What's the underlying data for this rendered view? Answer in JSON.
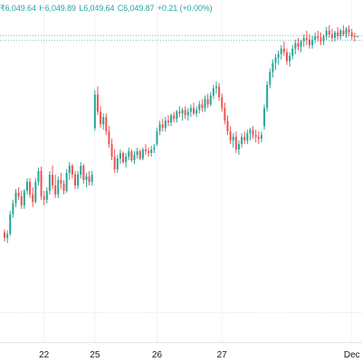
{
  "legend": {
    "open": "₹6,049.64",
    "high": "H6,049.89",
    "low": "L6,049.64",
    "close": "C6,049.87",
    "change": "+0.21 (+0.00%)",
    "color_up": "#26a69a",
    "color_down": "#ef5350"
  },
  "chart_data": {
    "type": "candlestick",
    "title": "",
    "xlabel": "",
    "ylabel": "",
    "x_ticks": [
      {
        "label": "22",
        "index": 14
      },
      {
        "label": "25",
        "index": 32
      },
      {
        "label": "26",
        "index": 54
      },
      {
        "label": "27",
        "index": 77
      },
      {
        "label": "Dec",
        "index": 123
      }
    ],
    "current_price": 6049.87,
    "grid": "vertical",
    "ylim": [
      5720,
      6070
    ],
    "colors": {
      "up": "#26a69a",
      "down": "#ef5350"
    },
    "candles": [
      [
        5832,
        5835,
        5822,
        5826
      ],
      [
        5826,
        5834,
        5820,
        5830
      ],
      [
        5830,
        5856,
        5828,
        5852
      ],
      [
        5852,
        5868,
        5848,
        5864
      ],
      [
        5864,
        5880,
        5860,
        5876
      ],
      [
        5876,
        5882,
        5868,
        5872
      ],
      [
        5872,
        5878,
        5858,
        5862
      ],
      [
        5862,
        5880,
        5858,
        5878
      ],
      [
        5878,
        5892,
        5874,
        5888
      ],
      [
        5888,
        5892,
        5870,
        5874
      ],
      [
        5874,
        5882,
        5860,
        5866
      ],
      [
        5866,
        5892,
        5864,
        5888
      ],
      [
        5888,
        5904,
        5884,
        5900
      ],
      [
        5900,
        5905,
        5868,
        5872
      ],
      [
        5872,
        5878,
        5862,
        5868
      ],
      [
        5868,
        5882,
        5864,
        5878
      ],
      [
        5878,
        5900,
        5874,
        5896
      ],
      [
        5896,
        5906,
        5880,
        5884
      ],
      [
        5884,
        5896,
        5870,
        5874
      ],
      [
        5874,
        5894,
        5870,
        5890
      ],
      [
        5890,
        5898,
        5880,
        5886
      ],
      [
        5886,
        5890,
        5874,
        5878
      ],
      [
        5878,
        5902,
        5876,
        5898
      ],
      [
        5898,
        5910,
        5890,
        5906
      ],
      [
        5906,
        5908,
        5892,
        5896
      ],
      [
        5896,
        5900,
        5880,
        5884
      ],
      [
        5884,
        5900,
        5880,
        5896
      ],
      [
        5896,
        5910,
        5892,
        5906
      ],
      [
        5906,
        5908,
        5886,
        5890
      ],
      [
        5890,
        5898,
        5882,
        5894
      ],
      [
        5894,
        5900,
        5884,
        5888
      ],
      [
        5888,
        5900,
        5884,
        5896
      ],
      [
        5948,
        5990,
        5945,
        5985
      ],
      [
        5985,
        5994,
        5962,
        5966
      ],
      [
        5966,
        5972,
        5948,
        5952
      ],
      [
        5952,
        5964,
        5946,
        5960
      ],
      [
        5960,
        5964,
        5940,
        5944
      ],
      [
        5944,
        5950,
        5926,
        5930
      ],
      [
        5930,
        5936,
        5912,
        5916
      ],
      [
        5916,
        5924,
        5898,
        5902
      ],
      [
        5902,
        5918,
        5898,
        5914
      ],
      [
        5914,
        5924,
        5908,
        5920
      ],
      [
        5920,
        5922,
        5908,
        5910
      ],
      [
        5910,
        5920,
        5904,
        5916
      ],
      [
        5916,
        5926,
        5912,
        5922
      ],
      [
        5922,
        5924,
        5910,
        5912
      ],
      [
        5912,
        5922,
        5908,
        5918
      ],
      [
        5918,
        5926,
        5914,
        5922
      ],
      [
        5922,
        5924,
        5912,
        5914
      ],
      [
        5914,
        5926,
        5912,
        5924
      ],
      [
        5924,
        5930,
        5918,
        5922
      ],
      [
        5922,
        5926,
        5916,
        5920
      ],
      [
        5920,
        5928,
        5916,
        5924
      ],
      [
        5924,
        5930,
        5920,
        5926
      ],
      [
        5930,
        5948,
        5928,
        5944
      ],
      [
        5944,
        5956,
        5940,
        5952
      ],
      [
        5952,
        5958,
        5944,
        5948
      ],
      [
        5948,
        5960,
        5944,
        5956
      ],
      [
        5956,
        5962,
        5950,
        5954
      ],
      [
        5954,
        5964,
        5950,
        5962
      ],
      [
        5962,
        5966,
        5954,
        5958
      ],
      [
        5958,
        5968,
        5954,
        5966
      ],
      [
        5966,
        5972,
        5960,
        5964
      ],
      [
        5964,
        5970,
        5956,
        5968
      ],
      [
        5968,
        5972,
        5958,
        5962
      ],
      [
        5962,
        5970,
        5956,
        5966
      ],
      [
        5966,
        5974,
        5960,
        5970
      ],
      [
        5970,
        5976,
        5962,
        5964
      ],
      [
        5964,
        5972,
        5960,
        5968
      ],
      [
        5968,
        5978,
        5964,
        5974
      ],
      [
        5974,
        5980,
        5966,
        5970
      ],
      [
        5970,
        5984,
        5966,
        5980
      ],
      [
        5980,
        5986,
        5970,
        5974
      ],
      [
        5974,
        5988,
        5972,
        5984
      ],
      [
        5984,
        5996,
        5980,
        5992
      ],
      [
        5992,
        6000,
        5986,
        5994
      ],
      [
        5994,
        5998,
        5978,
        5982
      ],
      [
        5982,
        5986,
        5966,
        5970
      ],
      [
        5970,
        5976,
        5952,
        5956
      ],
      [
        5956,
        5962,
        5940,
        5944
      ],
      [
        5944,
        5950,
        5930,
        5934
      ],
      [
        5934,
        5942,
        5926,
        5938
      ],
      [
        5938,
        5944,
        5920,
        5924
      ],
      [
        5924,
        5934,
        5918,
        5930
      ],
      [
        5930,
        5942,
        5926,
        5938
      ],
      [
        5938,
        5944,
        5930,
        5934
      ],
      [
        5934,
        5946,
        5930,
        5942
      ],
      [
        5942,
        5948,
        5934,
        5946
      ],
      [
        5946,
        5950,
        5936,
        5940
      ],
      [
        5940,
        5946,
        5932,
        5938
      ],
      [
        5938,
        5944,
        5930,
        5936
      ],
      [
        5936,
        5944,
        5932,
        5940
      ],
      [
        5950,
        5974,
        5946,
        5970
      ],
      [
        5970,
        6000,
        5966,
        5996
      ],
      [
        5996,
        6014,
        5992,
        6010
      ],
      [
        6010,
        6024,
        6004,
        6020
      ],
      [
        6020,
        6030,
        6012,
        6026
      ],
      [
        6026,
        6034,
        6018,
        6030
      ],
      [
        6030,
        6040,
        6024,
        6036
      ],
      [
        6036,
        6044,
        6028,
        6032
      ],
      [
        6032,
        6036,
        6018,
        6022
      ],
      [
        6022,
        6032,
        6016,
        6028
      ],
      [
        6028,
        6040,
        6024,
        6036
      ],
      [
        6036,
        6046,
        6030,
        6042
      ],
      [
        6042,
        6048,
        6034,
        6038
      ],
      [
        6038,
        6046,
        6032,
        6044
      ],
      [
        6044,
        6052,
        6038,
        6048
      ],
      [
        6048,
        6056,
        6040,
        6046
      ],
      [
        6046,
        6052,
        6036,
        6040
      ],
      [
        6040,
        6050,
        6036,
        6046
      ],
      [
        6046,
        6054,
        6042,
        6050
      ],
      [
        6050,
        6056,
        6044,
        6048
      ],
      [
        6048,
        6054,
        6040,
        6044
      ],
      [
        6044,
        6052,
        6040,
        6050
      ],
      [
        6050,
        6060,
        6046,
        6056
      ],
      [
        6056,
        6062,
        6048,
        6052
      ],
      [
        6052,
        6058,
        6044,
        6048
      ],
      [
        6048,
        6056,
        6044,
        6054
      ],
      [
        6054,
        6060,
        6046,
        6050
      ],
      [
        6050,
        6058,
        6046,
        6056
      ],
      [
        6056,
        6062,
        6050,
        6052
      ],
      [
        6052,
        6060,
        6048,
        6058
      ],
      [
        6058,
        6062,
        6050,
        6054
      ],
      [
        6054,
        6058,
        6046,
        6050
      ],
      [
        6050,
        6054,
        6044,
        6049.64
      ],
      [
        6049.64,
        6049.89,
        6049.64,
        6049.87
      ]
    ]
  }
}
